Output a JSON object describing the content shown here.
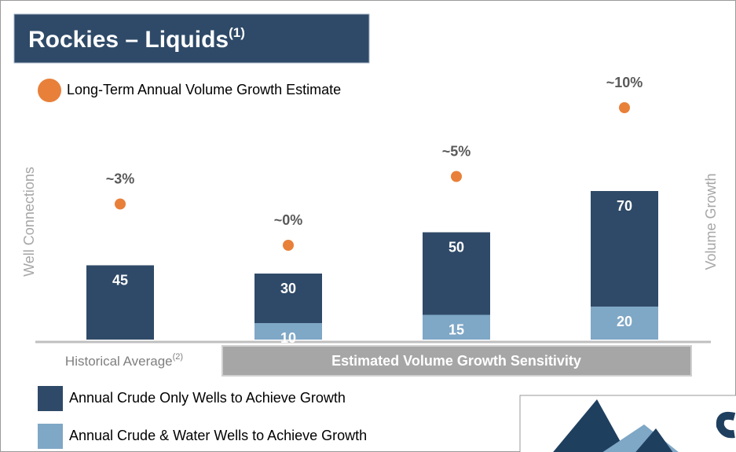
{
  "chart_data": {
    "type": "bar",
    "title": "Rockies – Liquids",
    "title_note": "(1)",
    "ylabel": "Well Connections",
    "y2label": "Volume Growth",
    "categories": [
      "Historical Average",
      null,
      null,
      null
    ],
    "category_note": "(2)",
    "group_label": "Estimated Volume Growth Sensitivity",
    "stacked": true,
    "ylim": [
      0,
      100
    ],
    "y2lim": [
      0,
      10
    ],
    "series": [
      {
        "name": "Annual Crude & Water Wells to Achieve Growth",
        "color": "#7fa7c6",
        "values": [
          null,
          10,
          15,
          20
        ]
      },
      {
        "name": "Annual Crude Only Wells to Achieve Growth",
        "color": "#2f4a68",
        "values": [
          45,
          30,
          50,
          70
        ]
      },
      {
        "name": "Long-Term Annual Volume Growth Estimate",
        "color": "#e8803a",
        "type": "scatter",
        "axis": "y2",
        "values": [
          3,
          0,
          5,
          10
        ],
        "value_labels": [
          "~3%",
          "~0%",
          "~5%",
          "~10%"
        ]
      }
    ]
  }
}
